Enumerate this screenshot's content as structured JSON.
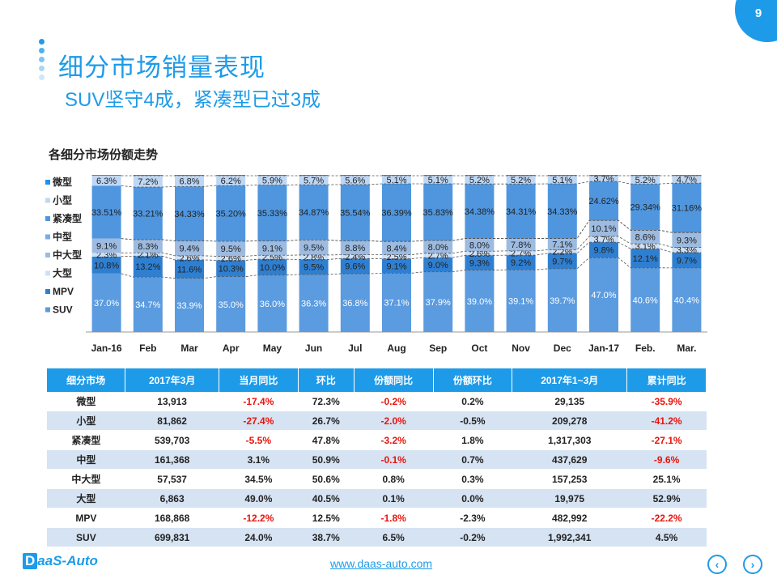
{
  "page_number": "9",
  "title": "细分市场销量表现",
  "subtitle": "SUV坚守4成，紧凑型已过3成",
  "colors": {
    "accent": "#1e9be8",
    "negative": "#e8140c",
    "segments": [
      "#5b9be0",
      "#2f7fd1",
      "#cfe0f5",
      "#9dbbe0",
      "#7aaae8",
      "#4f96df",
      "#bdd7f5",
      "#1e90f0"
    ]
  },
  "chart_data": {
    "type": "bar",
    "stacked": true,
    "percent": true,
    "title": "各细分市场份额走势",
    "categories": [
      "Jan-16",
      "Feb",
      "Mar",
      "Apr",
      "May",
      "Jun",
      "Jul",
      "Aug",
      "Sep",
      "Oct",
      "Nov",
      "Dec",
      "Jan-17",
      "Feb.",
      "Mar."
    ],
    "ylim": [
      0,
      100
    ],
    "legend_position": "left",
    "series": [
      {
        "name": "SUV",
        "values": [
          37.0,
          34.7,
          33.9,
          35.0,
          36.0,
          36.3,
          36.8,
          37.1,
          37.9,
          39.0,
          39.1,
          39.7,
          47.0,
          40.6,
          40.4
        ],
        "labels": [
          "37.0%",
          "34.7%",
          "33.9%",
          "35.0%",
          "36.0%",
          "36.3%",
          "36.8%",
          "37.1%",
          "37.9%",
          "39.0%",
          "39.1%",
          "39.7%",
          "47.0%",
          "40.6%",
          "40.4%"
        ]
      },
      {
        "name": "MPV",
        "values": [
          10.8,
          13.2,
          11.6,
          10.3,
          10.0,
          9.5,
          9.6,
          9.1,
          9.0,
          9.3,
          9.2,
          9.7,
          9.8,
          12.1,
          9.7
        ],
        "labels": [
          "10.8%",
          "13.2%",
          "11.6%",
          "10.3%",
          "10.0%",
          "9.5%",
          "9.6%",
          "9.1%",
          "9.0%",
          "9.3%",
          "9.2%",
          "9.7%",
          "9.8%",
          "12.1%",
          "9.7%"
        ]
      },
      {
        "name": "大型",
        "values": [
          2.3,
          2.1,
          2.6,
          2.6,
          2.5,
          2.8,
          2.4,
          2.5,
          2.7,
          2.6,
          2.7,
          2.2,
          3.7,
          3.1,
          3.3
        ],
        "labels": [
          "2.3%",
          "2.1%",
          "2.6%",
          "2.6%",
          "2.5%",
          "2.8%",
          "2.4%",
          "2.5%",
          "2.7%",
          "2.6%",
          "2.7%",
          "2.2%",
          "3.7%",
          "3.1%",
          "3.3%"
        ]
      },
      {
        "name": "中大型",
        "values": [
          9.1,
          8.3,
          9.4,
          9.5,
          9.1,
          9.5,
          8.8,
          8.4,
          8.0,
          8.0,
          7.8,
          7.1,
          10.1,
          8.6,
          9.3
        ],
        "labels": [
          "9.1%",
          "8.3%",
          "9.4%",
          "9.5%",
          "9.1%",
          "9.5%",
          "8.8%",
          "8.4%",
          "8.0%",
          "8.0%",
          "7.8%",
          "7.1%",
          "10.1%",
          "8.6%",
          "9.3%"
        ]
      },
      {
        "name": "中型",
        "values": [
          0,
          0,
          0,
          0,
          0,
          0,
          0,
          0,
          0,
          0,
          0,
          0,
          0,
          0,
          0
        ],
        "labels": []
      },
      {
        "name": "紧凑型",
        "values": [
          33.51,
          33.21,
          34.33,
          35.2,
          35.33,
          34.87,
          35.54,
          36.39,
          35.83,
          34.38,
          34.31,
          34.33,
          24.62,
          29.34,
          31.16
        ],
        "labels": [
          "33.51%",
          "33.21%",
          "34.33%",
          "35.20%",
          "35.33%",
          "34.87%",
          "35.54%",
          "36.39%",
          "35.83%",
          "34.38%",
          "34.31%",
          "34.33%",
          "24.62%",
          "29.34%",
          "31.16%"
        ]
      },
      {
        "name": "小型",
        "values": [
          6.3,
          7.2,
          6.8,
          6.2,
          5.9,
          5.7,
          5.6,
          5.1,
          5.1,
          5.2,
          5.2,
          5.1,
          3.7,
          5.2,
          4.7
        ],
        "labels": [
          "6.3%",
          "7.2%",
          "6.8%",
          "6.2%",
          "5.9%",
          "5.7%",
          "5.6%",
          "5.1%",
          "5.1%",
          "5.2%",
          "5.2%",
          "5.1%",
          "3.7%",
          "5.2%",
          "4.7%"
        ]
      },
      {
        "name": "微型",
        "values": [
          0.5,
          0.5,
          0.5,
          0.5,
          0.5,
          0.5,
          0.5,
          0.5,
          0.5,
          0.5,
          0.5,
          0.5,
          0.5,
          0.5,
          0.5
        ],
        "labels": []
      }
    ],
    "legend": [
      "微型",
      "小型",
      "紧凑型",
      "中型",
      "中大型",
      "大型",
      "MPV",
      "SUV"
    ]
  },
  "table": {
    "headers": [
      "细分市场",
      "2017年3月",
      "当月同比",
      "环比",
      "份额同比",
      "份额环比",
      "2017年1~3月",
      "累计同比"
    ],
    "rows": [
      [
        "微型",
        "13,913",
        "-17.4%",
        "72.3%",
        "-0.2%",
        "0.2%",
        "29,135",
        "-35.9%"
      ],
      [
        "小型",
        "81,862",
        "-27.4%",
        "26.7%",
        "-2.0%",
        "-0.5%",
        "209,278",
        "-41.2%"
      ],
      [
        "紧凑型",
        "539,703",
        "-5.5%",
        "47.8%",
        "-3.2%",
        "1.8%",
        "1,317,303",
        "-27.1%"
      ],
      [
        "中型",
        "161,368",
        "3.1%",
        "50.9%",
        "-0.1%",
        "0.7%",
        "437,629",
        "-9.6%"
      ],
      [
        "中大型",
        "57,537",
        "34.5%",
        "50.6%",
        "0.8%",
        "0.3%",
        "157,253",
        "25.1%"
      ],
      [
        "大型",
        "6,863",
        "49.0%",
        "40.5%",
        "0.1%",
        "0.0%",
        "19,975",
        "52.9%"
      ],
      [
        "MPV",
        "168,868",
        "-12.2%",
        "12.5%",
        "-1.8%",
        "-2.3%",
        "482,992",
        "-22.2%"
      ],
      [
        "SUV",
        "699,831",
        "24.0%",
        "38.7%",
        "6.5%",
        "-0.2%",
        "1,992,341",
        "4.5%"
      ]
    ]
  },
  "footer": {
    "logo_mark": "D",
    "logo_text": "aaS-Auto",
    "link": "www.daas-auto.com",
    "prev_icon": "‹",
    "next_icon": "›"
  }
}
